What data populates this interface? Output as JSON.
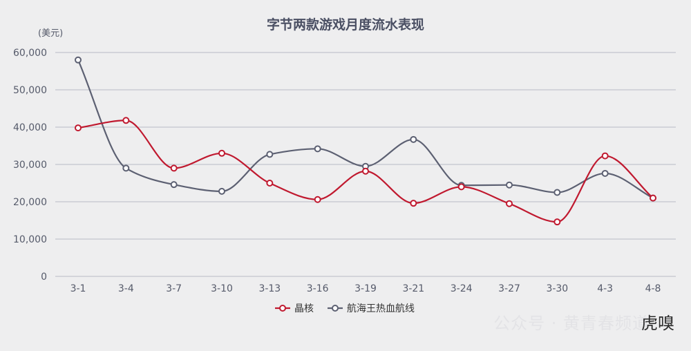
{
  "chart_data": {
    "type": "line",
    "title": "字节两款游戏月度流水表现",
    "unit_label": "(美元)",
    "categories": [
      "3-1",
      "3-4",
      "3-7",
      "3-10",
      "3-13",
      "3-16",
      "3-19",
      "3-21",
      "3-24",
      "3-27",
      "3-30",
      "4-3",
      "4-8"
    ],
    "ylim": [
      0,
      60000
    ],
    "yticks": [
      0,
      10000,
      20000,
      30000,
      40000,
      50000,
      60000
    ],
    "ytick_labels": [
      "0",
      "10,000",
      "20,000",
      "30,000",
      "40,000",
      "50,000",
      "60,000"
    ],
    "grid": true,
    "legend_position": "bottom",
    "series": [
      {
        "name": "晶核",
        "color": "#c0192f",
        "values": [
          39800,
          41800,
          29000,
          33000,
          25000,
          20600,
          28200,
          19600,
          24000,
          19500,
          14600,
          32300,
          21000
        ]
      },
      {
        "name": "航海王热血航线",
        "color": "#5c6072",
        "values": [
          58000,
          29000,
          24600,
          22800,
          32700,
          34200,
          29500,
          36700,
          24400,
          24500,
          22500,
          27600,
          21000
        ]
      }
    ]
  },
  "watermark": {
    "text": "公众号 · 黄青春频道",
    "logo_text": "虎嗅"
  }
}
